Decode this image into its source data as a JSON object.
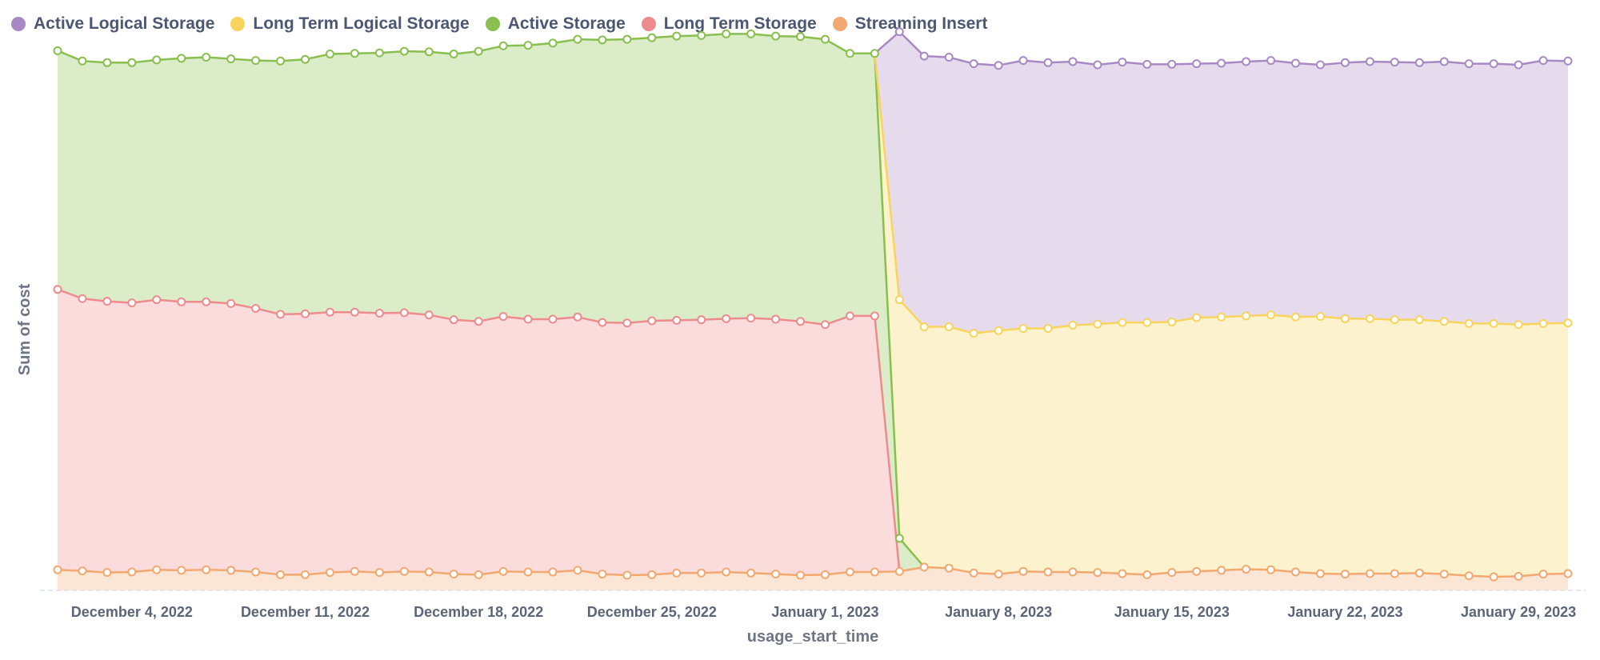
{
  "chart_data": {
    "type": "area",
    "stacked": true,
    "xlabel": "usage_start_time",
    "ylabel": "Sum of cost",
    "x_start": "2022-12-01",
    "x_step_days": 1,
    "x_ticks": [
      {
        "label": "December 4, 2022",
        "index": 3
      },
      {
        "label": "December 11, 2022",
        "index": 10
      },
      {
        "label": "December 18, 2022",
        "index": 17
      },
      {
        "label": "December 25, 2022",
        "index": 24
      },
      {
        "label": "January 1, 2023",
        "index": 31
      },
      {
        "label": "January 8, 2023",
        "index": 38
      },
      {
        "label": "January 15, 2023",
        "index": 45
      },
      {
        "label": "January 22, 2023",
        "index": 52
      },
      {
        "label": "January 29, 2023",
        "index": 59
      }
    ],
    "ylim": [
      0,
      1000
    ],
    "grid": false,
    "legend_position": "top-left",
    "series": [
      {
        "name": "Streaming Insert",
        "color": "#f2a86f",
        "values": [
          38,
          36,
          33,
          34,
          38,
          37,
          38,
          37,
          34,
          29,
          29,
          33,
          35,
          33,
          35,
          34,
          30,
          29,
          35,
          34,
          34,
          37,
          30,
          28,
          29,
          32,
          32,
          34,
          32,
          30,
          28,
          29,
          34,
          34,
          35,
          43,
          41,
          32,
          30,
          35,
          34,
          34,
          33,
          31,
          29,
          33,
          35,
          37,
          39,
          38,
          34,
          31,
          30,
          31,
          31,
          32,
          30,
          27,
          25,
          26,
          30,
          31
        ]
      },
      {
        "name": "Long Term Storage",
        "color": "#ed8b8d",
        "values": [
          517,
          502,
          500,
          496,
          498,
          495,
          494,
          492,
          486,
          480,
          481,
          480,
          478,
          478,
          477,
          474,
          469,
          467,
          470,
          466,
          466,
          467,
          464,
          465,
          468,
          466,
          467,
          467,
          470,
          470,
          468,
          461,
          472,
          472,
          0,
          0,
          0,
          0,
          0,
          0,
          0,
          0,
          0,
          0,
          0,
          0,
          0,
          0,
          0,
          0,
          0,
          0,
          0,
          0,
          0,
          0,
          0,
          0,
          0,
          0,
          0,
          0
        ]
      },
      {
        "name": "Active Storage",
        "color": "#88bf4d",
        "values": [
          440,
          438,
          440,
          443,
          442,
          449,
          451,
          451,
          457,
          467,
          469,
          476,
          477,
          480,
          482,
          485,
          490,
          498,
          499,
          505,
          509,
          512,
          521,
          523,
          522,
          524,
          524,
          525,
          524,
          522,
          525,
          526,
          484,
          484,
          61,
          0,
          0,
          0,
          0,
          0,
          0,
          0,
          0,
          0,
          0,
          0,
          0,
          0,
          0,
          0,
          0,
          0,
          0,
          0,
          0,
          0,
          0,
          0,
          0,
          0,
          0,
          0
        ]
      },
      {
        "name": "Long Term Logical Storage",
        "color": "#f9d45c",
        "values": [
          0,
          0,
          0,
          0,
          0,
          0,
          0,
          0,
          0,
          0,
          0,
          0,
          0,
          0,
          0,
          0,
          0,
          0,
          0,
          0,
          0,
          0,
          0,
          0,
          0,
          0,
          0,
          0,
          0,
          0,
          0,
          0,
          0,
          0,
          440,
          443,
          445,
          442,
          449,
          448,
          449,
          455,
          458,
          463,
          465,
          462,
          468,
          467,
          467,
          470,
          470,
          474,
          471,
          470,
          468,
          467,
          466,
          465,
          467,
          464,
          462,
          462
        ]
      },
      {
        "name": "Active Logical Storage",
        "color": "#a989c5",
        "values": [
          0,
          0,
          0,
          0,
          0,
          0,
          0,
          0,
          0,
          0,
          0,
          0,
          0,
          0,
          0,
          0,
          0,
          0,
          0,
          0,
          0,
          0,
          0,
          0,
          0,
          0,
          0,
          0,
          0,
          0,
          0,
          0,
          0,
          0,
          494,
          499,
          497,
          497,
          489,
          494,
          490,
          486,
          478,
          480,
          476,
          475,
          468,
          468,
          469,
          469,
          468,
          464,
          472,
          474,
          475,
          474,
          479,
          479,
          479,
          479,
          485,
          483
        ]
      }
    ]
  }
}
